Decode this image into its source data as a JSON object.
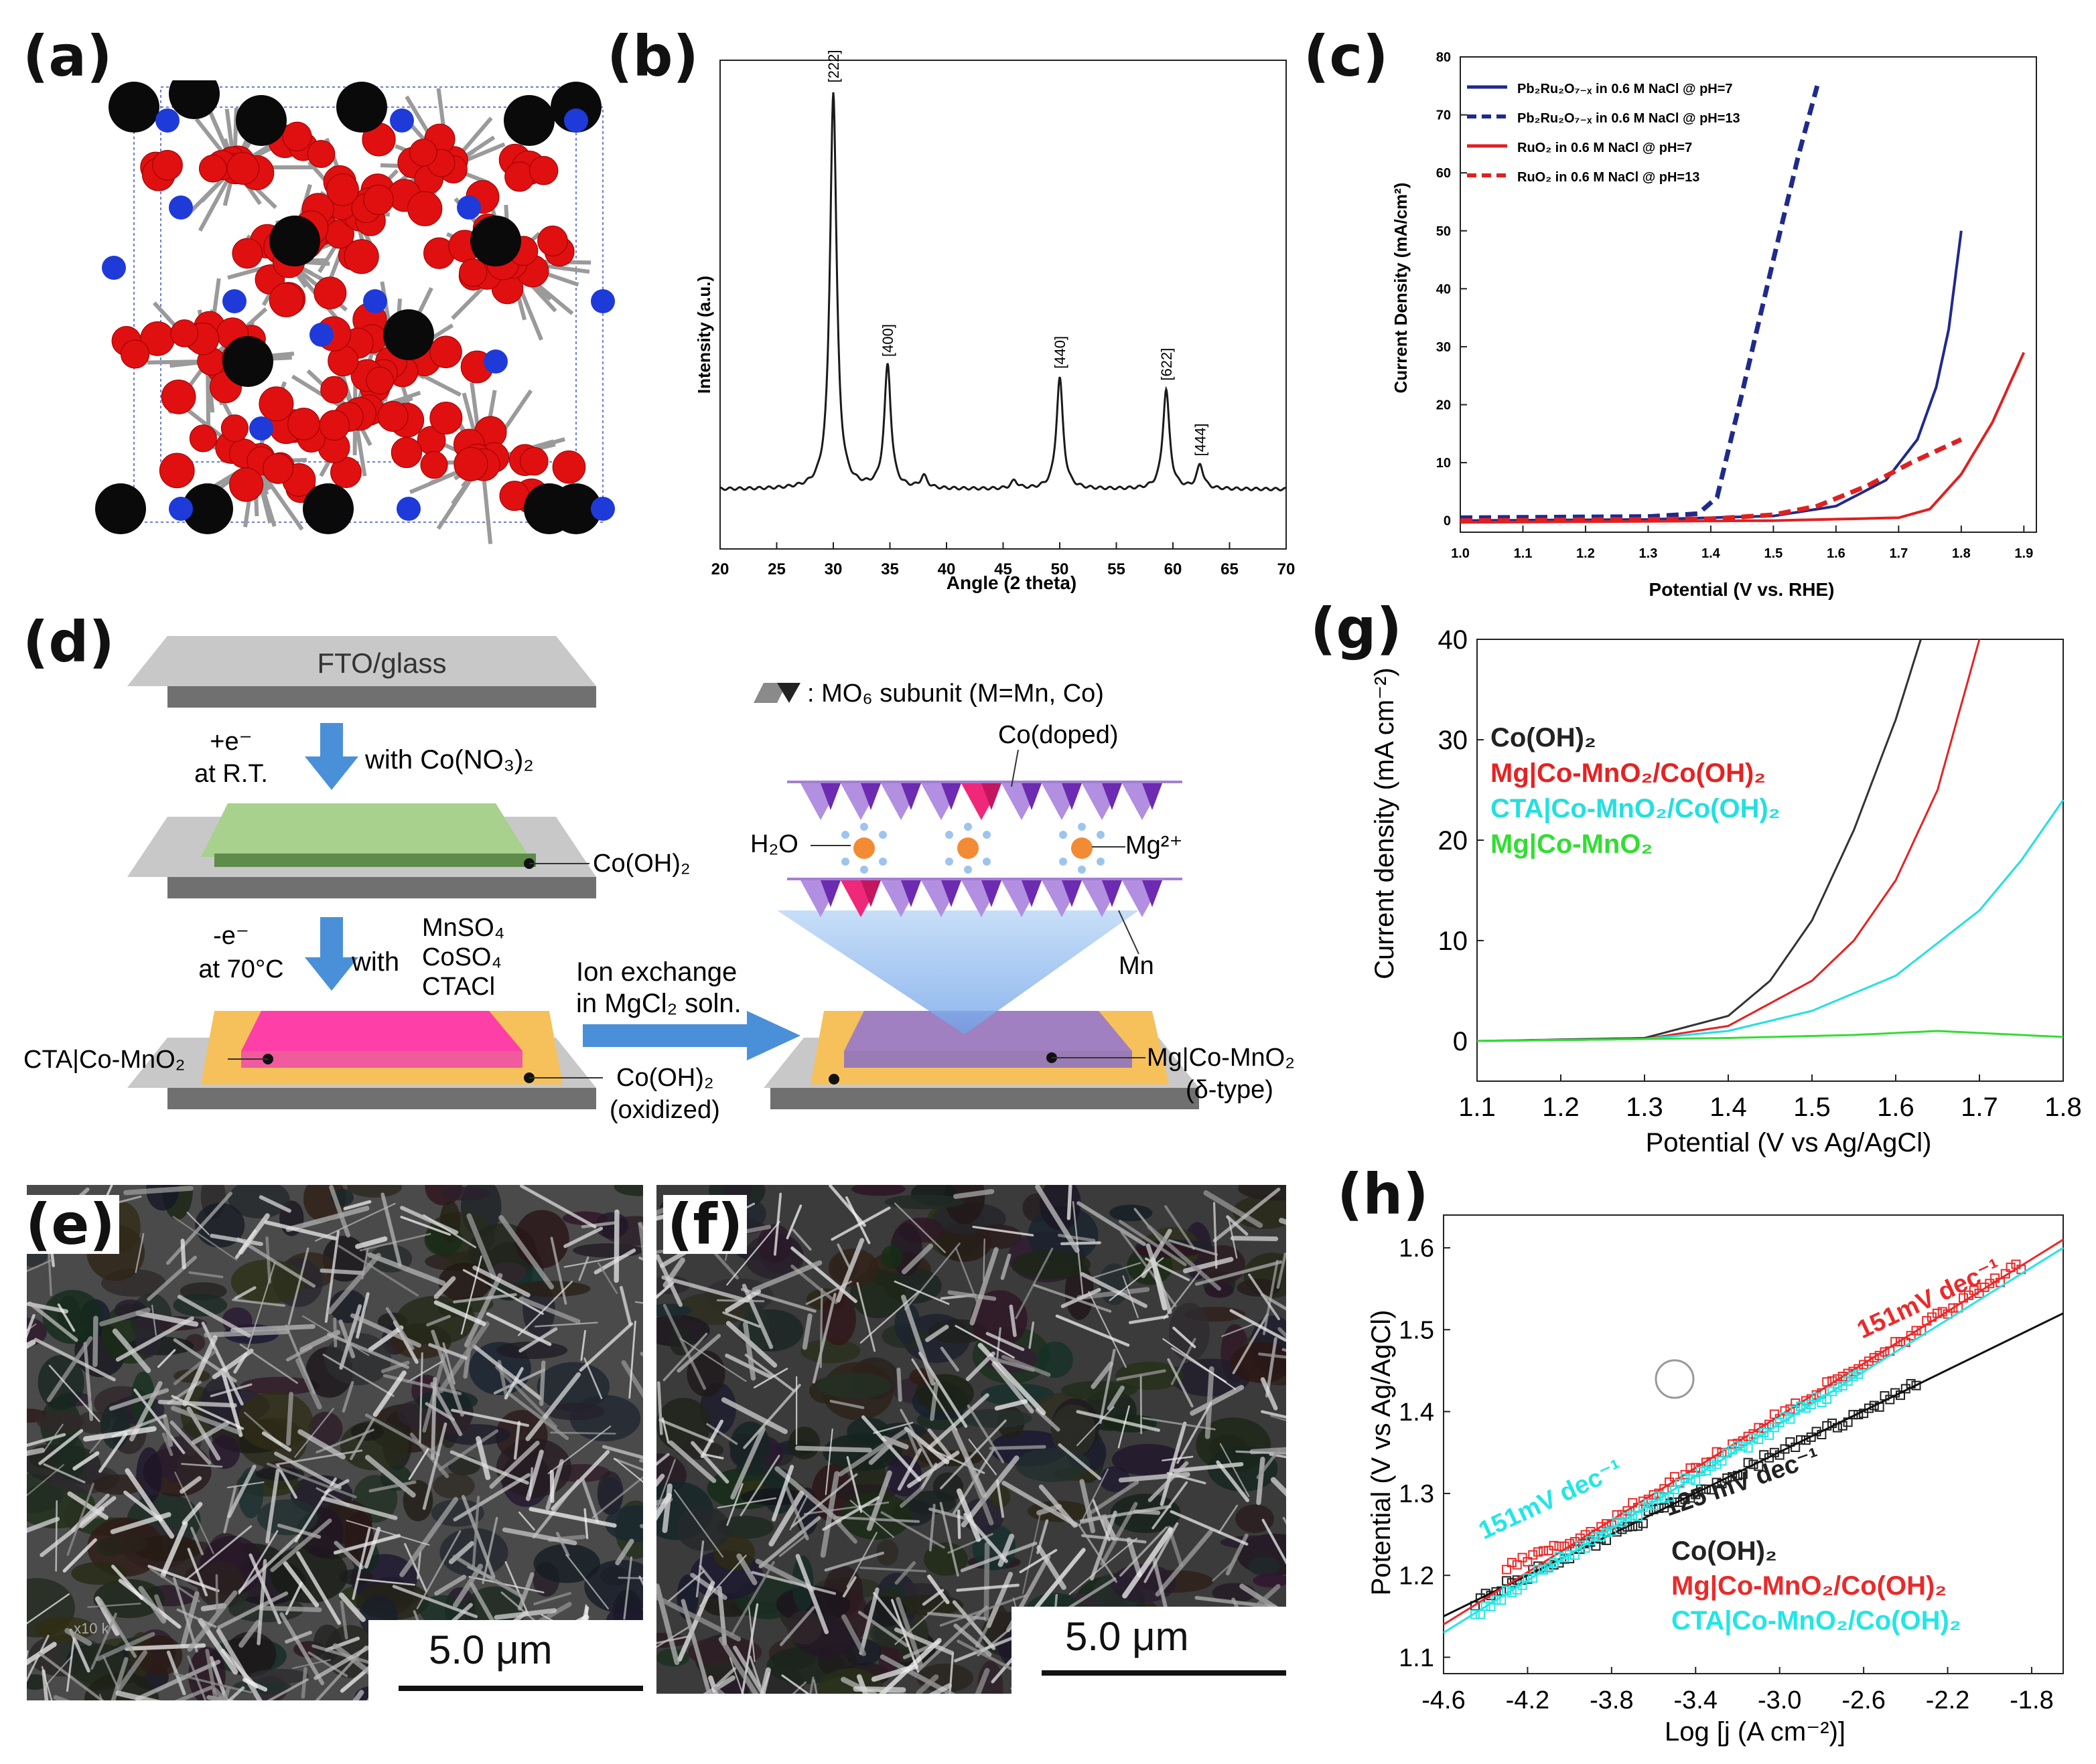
{
  "panels": {
    "a": {
      "label": "(a)"
    },
    "b": {
      "label": "(b)"
    },
    "c": {
      "label": "(c)"
    },
    "d": {
      "label": "(d)"
    },
    "e": {
      "label": "(e)"
    },
    "f": {
      "label": "(f)"
    },
    "g": {
      "label": "(g)"
    },
    "h": {
      "label": "(h)"
    }
  },
  "crystal": {
    "sphere_colors": {
      "black": "#0a0a0a",
      "red": "#e01010",
      "blue": "#1e3ad8"
    }
  },
  "chart_data": [
    {
      "id": "b",
      "type": "line",
      "title": "",
      "xlabel": "Angle (2 theta)",
      "ylabel": "Intensity (a.u.)",
      "xlim": [
        20,
        70
      ],
      "xticks": [
        "20",
        "25",
        "30",
        "35",
        "40",
        "45",
        "50",
        "55",
        "60",
        "65",
        "70"
      ],
      "series": [
        {
          "name": "XRD",
          "color": "#1a1a1a",
          "peaks": [
            {
              "x": 30.0,
              "y": 100,
              "label": "[222]"
            },
            {
              "x": 34.8,
              "y": 31,
              "label": "[400]"
            },
            {
              "x": 38.0,
              "y": 3
            },
            {
              "x": 46.0,
              "y": 2
            },
            {
              "x": 50.0,
              "y": 28,
              "label": "[440]"
            },
            {
              "x": 59.4,
              "y": 25,
              "label": "[622]"
            },
            {
              "x": 62.4,
              "y": 6,
              "label": "[444]"
            }
          ]
        }
      ]
    },
    {
      "id": "c",
      "type": "line",
      "xlabel": "Potential (V vs. RHE)",
      "ylabel": "Current Density (mA/cm²)",
      "xlim": [
        1.0,
        1.92
      ],
      "ylim": [
        -2,
        80
      ],
      "xticks": [
        "1.0",
        "1.1",
        "1.2",
        "1.3",
        "1.4",
        "1.5",
        "1.6",
        "1.7",
        "1.8",
        "1.9"
      ],
      "yticks": [
        "0",
        "10",
        "20",
        "30",
        "40",
        "50",
        "60",
        "70",
        "80"
      ],
      "series": [
        {
          "name": "Pb₂Ru₂O₇₋ₓ in 0.6 M NaCl @ pH=7",
          "color": "#1f2a8c",
          "dash": false,
          "points": [
            [
              1.0,
              0
            ],
            [
              1.3,
              0.2
            ],
            [
              1.5,
              0.8
            ],
            [
              1.6,
              2.5
            ],
            [
              1.68,
              7
            ],
            [
              1.73,
              14
            ],
            [
              1.76,
              23
            ],
            [
              1.78,
              33
            ],
            [
              1.8,
              50
            ]
          ]
        },
        {
          "name": "Pb₂Ru₂O₇₋ₓ in 0.6 M NaCl @ pH=13",
          "color": "#1f2a8c",
          "dash": true,
          "points": [
            [
              1.0,
              0.5
            ],
            [
              1.3,
              0.7
            ],
            [
              1.38,
              1.2
            ],
            [
              1.41,
              4
            ],
            [
              1.45,
              22
            ],
            [
              1.5,
              45
            ],
            [
              1.54,
              63
            ],
            [
              1.57,
              75
            ]
          ]
        },
        {
          "name": "RuO₂ in 0.6 M NaCl @ pH=7",
          "color": "#e02020",
          "dash": false,
          "points": [
            [
              1.0,
              -0.3
            ],
            [
              1.5,
              0
            ],
            [
              1.7,
              0.5
            ],
            [
              1.75,
              2
            ],
            [
              1.8,
              8
            ],
            [
              1.85,
              17
            ],
            [
              1.9,
              29
            ]
          ]
        },
        {
          "name": "RuO₂ in 0.6 M NaCl @ pH=13",
          "color": "#e02020",
          "dash": true,
          "points": [
            [
              1.0,
              0
            ],
            [
              1.4,
              0.3
            ],
            [
              1.5,
              1
            ],
            [
              1.57,
              2.5
            ],
            [
              1.65,
              6
            ],
            [
              1.72,
              10
            ],
            [
              1.8,
              14
            ]
          ]
        }
      ]
    },
    {
      "id": "g",
      "type": "line",
      "xlabel": "Potential (V vs Ag/AgCl)",
      "ylabel": "Current density (mA cm⁻²)",
      "xlim": [
        1.1,
        1.8
      ],
      "ylim": [
        -4,
        40
      ],
      "xticks": [
        "1.1",
        "1.2",
        "1.3",
        "1.4",
        "1.5",
        "1.6",
        "1.7",
        "1.8"
      ],
      "yticks": [
        "0",
        "10",
        "20",
        "30",
        "40"
      ],
      "series": [
        {
          "name": "Co(OH)₂",
          "color": "#333333",
          "points": [
            [
              1.1,
              0
            ],
            [
              1.3,
              0.3
            ],
            [
              1.4,
              2.5
            ],
            [
              1.45,
              6
            ],
            [
              1.5,
              12
            ],
            [
              1.55,
              21
            ],
            [
              1.6,
              32
            ],
            [
              1.63,
              40
            ]
          ]
        },
        {
          "name": "Mg|Co-MnO₂/Co(OH)₂",
          "color": "#e52222",
          "points": [
            [
              1.1,
              0
            ],
            [
              1.3,
              0.2
            ],
            [
              1.4,
              1.5
            ],
            [
              1.5,
              6
            ],
            [
              1.55,
              10
            ],
            [
              1.6,
              16
            ],
            [
              1.65,
              25
            ],
            [
              1.7,
              40
            ]
          ]
        },
        {
          "name": "CTA|Co-MnO₂/Co(OH)₂",
          "color": "#22e0e0",
          "points": [
            [
              1.1,
              0
            ],
            [
              1.3,
              0.2
            ],
            [
              1.4,
              1
            ],
            [
              1.5,
              3
            ],
            [
              1.6,
              6.5
            ],
            [
              1.7,
              13
            ],
            [
              1.75,
              18
            ],
            [
              1.8,
              24
            ]
          ]
        },
        {
          "name": "Mg|Co-MnO₂",
          "color": "#33dd33",
          "points": [
            [
              1.1,
              0
            ],
            [
              1.4,
              0.3
            ],
            [
              1.55,
              0.6
            ],
            [
              1.65,
              1
            ],
            [
              1.7,
              0.8
            ],
            [
              1.8,
              0.4
            ]
          ]
        }
      ]
    },
    {
      "id": "h",
      "type": "scatter",
      "xlabel": "Log [j (A cm⁻²)]",
      "ylabel": "Potential (V vs Ag/AgCl)",
      "xlim": [
        -4.6,
        -1.65
      ],
      "ylim": [
        1.08,
        1.64
      ],
      "xticks": [
        "-4.6",
        "-4.2",
        "-3.8",
        "-3.4",
        "-3.0",
        "-2.6",
        "-2.2",
        "-1.8"
      ],
      "yticks": [
        "1.1",
        "1.2",
        "1.3",
        "1.4",
        "1.5",
        "1.6"
      ],
      "series": [
        {
          "name": "Co(OH)₂",
          "color": "#222222",
          "slope_label": "125 mV dec⁻¹",
          "fit": [
            [
              -4.6,
              1.15
            ],
            [
              -1.65,
              1.52
            ]
          ],
          "range": [
            -4.45,
            -2.35
          ]
        },
        {
          "name": "Mg|Co-MnO₂/Co(OH)₂",
          "color": "#ea2a2a",
          "slope_label": "151mV dec⁻¹",
          "fit": [
            [
              -4.6,
              1.14
            ],
            [
              -1.65,
              1.61
            ]
          ],
          "range": [
            -4.3,
            -1.85
          ]
        },
        {
          "name": "CTA|Co-MnO₂/Co(OH)₂",
          "color": "#22e6e6",
          "slope_label": "151mV dec⁻¹",
          "fit": [
            [
              -4.6,
              1.13
            ],
            [
              -1.65,
              1.6
            ]
          ],
          "range": [
            -4.45,
            -2.6
          ]
        }
      ]
    }
  ],
  "schematic": {
    "fto_label": "FTO/glass",
    "step1_top": "+e⁻",
    "step1_bottom": "at R.T.",
    "step1_reagent": "with Co(NO₃)₂",
    "coh2_label": "Co(OH)₂",
    "step2_top": "-e⁻",
    "step2_bottom": "at 70°C",
    "step2_with": "with",
    "step2_reagents": [
      "MnSO₄",
      "CoSO₄",
      "CTACl"
    ],
    "cta_label": "CTA|Co-MnO₂",
    "coh2_ox_label": "Co(OH)₂",
    "oxidized_label": "(oxidized)",
    "ion_exchange_1": "Ion exchange",
    "ion_exchange_2": "in MgCl₂ soln.",
    "mg_label": "Mg|Co-MnO₂",
    "delta_label": "(δ-type)",
    "mo6_label": ": MO₆ subunit (M=Mn, Co)",
    "codoped_label": "Co(doped)",
    "h2o_label": "H₂O",
    "mg2_label": "Mg²⁺",
    "mn_label": "Mn"
  },
  "sem": {
    "e": {
      "scale": "5.0 μm",
      "corner_text": "x10 k"
    },
    "f": {
      "scale": "5.0 μm"
    }
  }
}
